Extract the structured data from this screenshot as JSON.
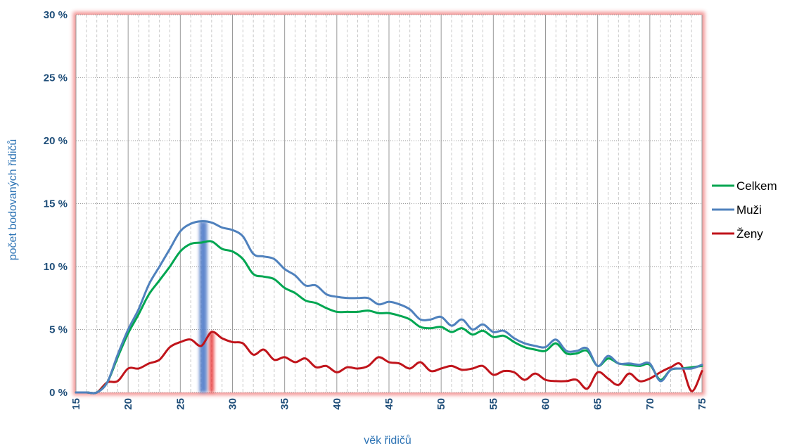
{
  "chart_data": {
    "type": "line",
    "xlabel": "věk řidičů",
    "ylabel": "počet bodovaných řidičů",
    "xlim": [
      15,
      75
    ],
    "ylim": [
      0,
      30
    ],
    "x_ticks": [
      15,
      20,
      25,
      30,
      35,
      40,
      45,
      50,
      55,
      60,
      65,
      70,
      75
    ],
    "y_ticks": [
      {
        "value": 0,
        "label": "0 %"
      },
      {
        "value": 5,
        "label": "5 %"
      },
      {
        "value": 10,
        "label": "10 %"
      },
      {
        "value": 15,
        "label": "15 %"
      },
      {
        "value": 20,
        "label": "20 %"
      },
      {
        "value": 25,
        "label": "25 %"
      },
      {
        "value": 30,
        "label": "30 %"
      }
    ],
    "grid": "major solid, minor dashed vertical",
    "legend_position": "right",
    "highlight_bands": [
      {
        "name": "Muži",
        "x": 27.2,
        "color": "#4472c4"
      },
      {
        "name": "Ženy",
        "x": 28.0,
        "color": "#e83030"
      }
    ],
    "x": [
      15,
      16,
      17,
      18,
      19,
      20,
      21,
      22,
      23,
      24,
      25,
      26,
      27,
      28,
      29,
      30,
      31,
      32,
      33,
      34,
      35,
      36,
      37,
      38,
      39,
      40,
      41,
      42,
      43,
      44,
      45,
      46,
      47,
      48,
      49,
      50,
      51,
      52,
      53,
      54,
      55,
      56,
      57,
      58,
      59,
      60,
      61,
      62,
      63,
      64,
      65,
      66,
      67,
      68,
      69,
      70,
      71,
      72,
      73,
      74,
      75
    ],
    "series": [
      {
        "name": "Celkem",
        "color": "#00a651",
        "values": [
          0,
          0,
          0,
          0.8,
          2.8,
          4.7,
          6.2,
          7.8,
          8.9,
          10.0,
          11.2,
          11.8,
          11.9,
          12.0,
          11.4,
          11.2,
          10.6,
          9.4,
          9.2,
          9.0,
          8.3,
          7.9,
          7.3,
          7.1,
          6.7,
          6.4,
          6.4,
          6.4,
          6.5,
          6.3,
          6.3,
          6.1,
          5.8,
          5.2,
          5.1,
          5.2,
          4.8,
          5.1,
          4.6,
          4.9,
          4.4,
          4.5,
          4.0,
          3.6,
          3.4,
          3.3,
          3.9,
          3.1,
          3.1,
          3.3,
          2.1,
          2.7,
          2.3,
          2.2,
          2.1,
          2.2,
          1.0,
          1.8,
          1.9,
          2.0,
          2.1
        ]
      },
      {
        "name": "Muži",
        "color": "#4f81bd",
        "values": [
          0,
          0,
          0,
          0.8,
          3.0,
          5.0,
          6.6,
          8.6,
          10.0,
          11.4,
          12.8,
          13.4,
          13.6,
          13.5,
          13.1,
          12.9,
          12.4,
          11.0,
          10.8,
          10.6,
          9.8,
          9.3,
          8.5,
          8.5,
          7.8,
          7.6,
          7.5,
          7.5,
          7.5,
          7.0,
          7.2,
          7.0,
          6.6,
          5.8,
          5.8,
          6.0,
          5.3,
          5.8,
          5.0,
          5.4,
          4.8,
          4.9,
          4.3,
          3.9,
          3.7,
          3.6,
          4.2,
          3.3,
          3.3,
          3.5,
          2.1,
          2.9,
          2.3,
          2.3,
          2.2,
          2.3,
          0.9,
          1.8,
          1.9,
          1.9,
          2.2
        ]
      },
      {
        "name": "Ženy",
        "color": "#c0141b",
        "values": [
          0,
          0,
          0,
          0.8,
          0.9,
          1.9,
          1.9,
          2.3,
          2.6,
          3.6,
          4.0,
          4.2,
          3.7,
          4.8,
          4.3,
          4.0,
          3.9,
          3.0,
          3.4,
          2.6,
          2.8,
          2.4,
          2.7,
          2.0,
          2.1,
          1.6,
          2.0,
          1.9,
          2.1,
          2.8,
          2.4,
          2.3,
          1.9,
          2.4,
          1.7,
          1.9,
          2.1,
          1.8,
          1.9,
          2.1,
          1.4,
          1.7,
          1.6,
          1.0,
          1.5,
          1.0,
          0.9,
          0.9,
          1.0,
          0.3,
          1.6,
          1.1,
          0.6,
          1.5,
          0.9,
          1.1,
          1.6,
          2.0,
          2.2,
          0.1,
          1.7
        ]
      }
    ]
  }
}
